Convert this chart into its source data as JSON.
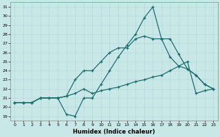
{
  "xlabel": "Humidex (Indice chaleur)",
  "background_color": "#c8e8e8",
  "line_color": "#1a6b6b",
  "xlim": [
    -0.5,
    23.5
  ],
  "ylim": [
    18.5,
    31.5
  ],
  "xticks": [
    0,
    1,
    2,
    3,
    4,
    5,
    6,
    7,
    8,
    9,
    10,
    11,
    12,
    13,
    14,
    15,
    16,
    17,
    18,
    19,
    20,
    21,
    22,
    23
  ],
  "yticks": [
    19,
    20,
    21,
    22,
    23,
    24,
    25,
    26,
    27,
    28,
    29,
    30,
    31
  ],
  "line1_x": [
    0,
    1,
    2,
    3,
    5,
    6,
    7,
    8,
    9,
    10,
    11,
    12,
    13,
    14,
    15,
    16,
    17,
    18,
    19,
    20,
    21,
    22,
    23
  ],
  "line1_y": [
    20.5,
    20.5,
    20.5,
    21.0,
    21.0,
    21.2,
    21.5,
    22.0,
    21.5,
    21.8,
    22.0,
    22.2,
    22.5,
    22.8,
    23.0,
    23.3,
    23.5,
    24.0,
    24.5,
    25.0,
    21.5,
    21.8,
    22.0
  ],
  "line2_x": [
    0,
    1,
    2,
    3,
    4,
    5,
    6,
    7,
    8,
    9,
    10,
    11,
    12,
    13,
    14,
    15,
    16,
    17,
    18,
    19,
    20,
    21,
    22,
    23
  ],
  "line2_y": [
    20.5,
    20.5,
    20.5,
    21.0,
    21.0,
    21.0,
    21.2,
    23.0,
    24.0,
    24.0,
    25.0,
    26.0,
    26.5,
    26.5,
    27.5,
    27.8,
    27.5,
    27.5,
    25.5,
    24.5,
    24.2,
    23.5,
    22.5,
    22.0
  ],
  "line3_x": [
    0,
    1,
    2,
    3,
    4,
    5,
    6,
    7,
    8,
    9,
    10,
    11,
    12,
    13,
    14,
    15,
    16,
    17,
    18,
    19,
    20,
    21,
    22,
    23
  ],
  "line3_y": [
    20.5,
    20.5,
    20.5,
    21.0,
    21.0,
    21.0,
    19.2,
    19.0,
    21.0,
    21.0,
    22.5,
    24.0,
    25.5,
    26.8,
    28.0,
    29.8,
    31.0,
    27.5,
    27.5,
    25.8,
    24.2,
    23.5,
    22.5,
    22.0
  ]
}
